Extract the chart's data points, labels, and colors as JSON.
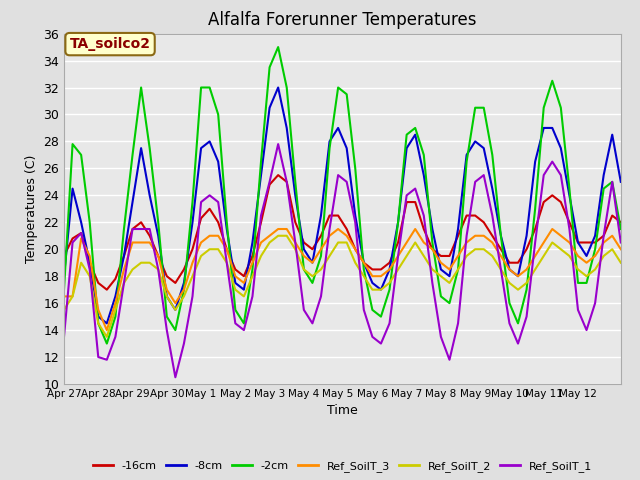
{
  "title": "Alfalfa Forerunner Temperatures",
  "xlabel": "Time",
  "ylabel": "Temperatures (C)",
  "annotation_text": "TA_soilco2",
  "annotation_facecolor": "#ffffcc",
  "annotation_edgecolor": "#8b6914",
  "annotation_textcolor": "#8b0000",
  "ylim": [
    10,
    36
  ],
  "yticks": [
    10,
    12,
    14,
    16,
    18,
    20,
    22,
    24,
    26,
    28,
    30,
    32,
    34,
    36
  ],
  "xtick_labels": [
    "Apr 27",
    "Apr 28",
    "Apr 29",
    "Apr 30",
    "May 1",
    "May 2",
    "May 3",
    "May 4",
    "May 5",
    "May 6",
    "May 7",
    "May 8",
    "May 9",
    "May 10",
    "May 11",
    "May 12"
  ],
  "background_color": "#e0e0e0",
  "plot_background": "#e8e8e8",
  "grid_color": "#ffffff",
  "series": [
    {
      "label": "-16cm",
      "color": "#cc0000",
      "linewidth": 1.5,
      "y": [
        19.5,
        20.8,
        21.2,
        19.0,
        17.5,
        17.0,
        17.8,
        19.5,
        21.5,
        22.0,
        21.0,
        19.5,
        18.0,
        17.5,
        18.5,
        20.0,
        22.3,
        23.0,
        22.0,
        20.0,
        18.5,
        18.0,
        19.5,
        22.0,
        24.8,
        25.5,
        25.0,
        22.0,
        20.5,
        20.0,
        21.0,
        22.5,
        22.5,
        21.5,
        20.0,
        19.0,
        18.5,
        18.5,
        19.0,
        20.5,
        23.5,
        23.5,
        21.5,
        20.0,
        19.5,
        19.5,
        21.0,
        22.5,
        22.5,
        22.0,
        21.0,
        20.0,
        19.0,
        19.0,
        20.0,
        21.5,
        23.5,
        24.0,
        23.5,
        22.0,
        20.5,
        20.5,
        20.5,
        21.0,
        22.5,
        22.0
      ]
    },
    {
      "label": "-8cm",
      "color": "#0000cc",
      "linewidth": 1.5,
      "y": [
        18.0,
        24.5,
        22.0,
        19.0,
        15.0,
        14.5,
        16.5,
        19.5,
        23.5,
        27.5,
        24.0,
        21.0,
        16.5,
        15.5,
        17.5,
        22.0,
        27.5,
        28.0,
        26.5,
        21.5,
        17.5,
        17.0,
        20.5,
        25.5,
        30.5,
        32.0,
        29.0,
        24.0,
        20.0,
        19.0,
        22.5,
        28.0,
        29.0,
        27.5,
        22.5,
        19.0,
        17.5,
        17.0,
        18.5,
        22.0,
        27.5,
        28.5,
        25.5,
        21.5,
        18.5,
        18.0,
        21.5,
        27.0,
        28.0,
        27.5,
        24.5,
        21.0,
        18.5,
        18.0,
        21.0,
        26.5,
        29.0,
        29.0,
        27.5,
        24.0,
        20.5,
        19.5,
        21.0,
        25.5,
        28.5,
        25.0
      ]
    },
    {
      "label": "-2cm",
      "color": "#00cc00",
      "linewidth": 1.5,
      "y": [
        17.0,
        27.8,
        27.0,
        22.0,
        14.5,
        13.0,
        15.0,
        21.5,
        27.0,
        32.0,
        27.5,
        22.0,
        15.0,
        14.0,
        17.0,
        23.5,
        32.0,
        32.0,
        30.0,
        22.0,
        15.5,
        14.5,
        18.5,
        26.5,
        33.5,
        35.0,
        32.0,
        25.0,
        18.5,
        17.5,
        19.5,
        27.5,
        32.0,
        31.5,
        26.0,
        18.5,
        15.5,
        15.0,
        17.0,
        22.0,
        28.5,
        29.0,
        27.0,
        20.5,
        16.5,
        16.0,
        18.5,
        26.5,
        30.5,
        30.5,
        27.0,
        21.0,
        16.0,
        14.5,
        17.0,
        23.0,
        30.5,
        32.5,
        30.5,
        24.5,
        17.5,
        17.5,
        20.0,
        24.5,
        25.0,
        21.5
      ]
    },
    {
      "label": "Ref_SoilT_3",
      "color": "#ff8c00",
      "linewidth": 1.5,
      "y": [
        16.5,
        16.5,
        20.8,
        19.5,
        15.5,
        14.0,
        16.0,
        18.5,
        20.5,
        20.5,
        20.5,
        19.5,
        17.0,
        16.0,
        17.0,
        19.0,
        20.5,
        21.0,
        21.0,
        20.0,
        18.0,
        17.5,
        19.0,
        20.5,
        21.0,
        21.5,
        21.5,
        20.5,
        19.5,
        19.0,
        20.0,
        21.0,
        21.5,
        21.0,
        20.0,
        19.0,
        18.0,
        18.0,
        18.5,
        19.5,
        20.5,
        21.5,
        20.5,
        20.0,
        19.0,
        18.5,
        19.5,
        20.5,
        21.0,
        21.0,
        20.5,
        19.5,
        18.5,
        18.0,
        18.5,
        19.5,
        20.5,
        21.5,
        21.0,
        20.5,
        19.5,
        19.0,
        19.5,
        20.5,
        21.0,
        20.0
      ]
    },
    {
      "label": "Ref_SoilT_2",
      "color": "#cccc00",
      "linewidth": 1.5,
      "y": [
        15.5,
        16.5,
        19.0,
        18.0,
        14.5,
        13.5,
        15.5,
        17.5,
        18.5,
        19.0,
        19.0,
        18.5,
        16.5,
        15.5,
        16.5,
        18.0,
        19.5,
        20.0,
        20.0,
        19.0,
        17.0,
        16.5,
        18.0,
        19.5,
        20.5,
        21.0,
        21.0,
        20.0,
        18.5,
        18.0,
        18.5,
        19.5,
        20.5,
        20.5,
        19.0,
        18.0,
        17.0,
        17.0,
        17.5,
        18.5,
        19.5,
        20.5,
        19.5,
        18.5,
        18.0,
        17.5,
        18.5,
        19.5,
        20.0,
        20.0,
        19.5,
        18.5,
        17.5,
        17.0,
        17.5,
        18.5,
        19.5,
        20.5,
        20.0,
        19.5,
        18.5,
        18.0,
        18.5,
        19.5,
        20.0,
        19.0
      ]
    },
    {
      "label": "Ref_SoilT_1",
      "color": "#9900cc",
      "linewidth": 1.5,
      "y": [
        13.5,
        20.5,
        21.2,
        18.5,
        12.0,
        11.8,
        13.5,
        17.5,
        21.5,
        21.5,
        21.5,
        18.5,
        14.0,
        10.5,
        13.0,
        16.5,
        23.5,
        24.0,
        23.5,
        19.0,
        14.5,
        14.0,
        16.5,
        22.5,
        25.0,
        27.8,
        25.0,
        20.5,
        15.5,
        14.5,
        16.5,
        21.5,
        25.5,
        25.0,
        22.0,
        15.5,
        13.5,
        13.0,
        14.5,
        19.5,
        24.0,
        24.5,
        22.5,
        17.5,
        13.5,
        11.8,
        14.5,
        21.0,
        25.0,
        25.5,
        22.5,
        18.5,
        14.5,
        13.0,
        15.0,
        20.5,
        25.5,
        26.5,
        25.5,
        21.5,
        15.5,
        14.0,
        16.0,
        21.0,
        25.0,
        20.5
      ]
    }
  ],
  "n_points": 66,
  "tick_positions": [
    0,
    4,
    8,
    12,
    16,
    20,
    24,
    28,
    32,
    36,
    40,
    44,
    48,
    52,
    56,
    60
  ]
}
